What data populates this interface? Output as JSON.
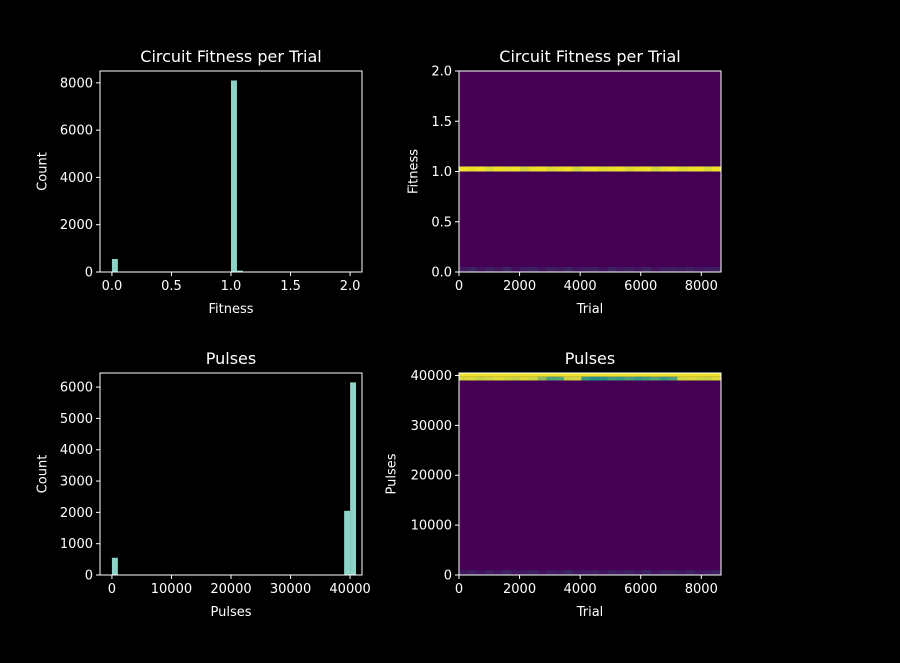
{
  "chart_data": [
    {
      "type": "bar",
      "title": "Circuit Fitness per Trial",
      "xlabel": "Fitness",
      "ylabel": "Count",
      "xlim": [
        -0.1,
        2.1
      ],
      "ylim": [
        0,
        8500
      ],
      "xticks": [
        {
          "value": 0.0,
          "label": "0.0"
        },
        {
          "value": 0.5,
          "label": "0.5"
        },
        {
          "value": 1.0,
          "label": "1.0"
        },
        {
          "value": 1.5,
          "label": "1.5"
        },
        {
          "value": 2.0,
          "label": "2.0"
        }
      ],
      "yticks": [
        {
          "value": 0,
          "label": "0"
        },
        {
          "value": 2000,
          "label": "2000"
        },
        {
          "value": 4000,
          "label": "4000"
        },
        {
          "value": 6000,
          "label": "6000"
        },
        {
          "value": 8000,
          "label": "8000"
        }
      ],
      "bins": [
        {
          "x0": 0.0,
          "x1": 0.05,
          "count": 550
        },
        {
          "x0": 1.0,
          "x1": 1.05,
          "count": 8100
        },
        {
          "x0": 1.05,
          "x1": 1.1,
          "count": 60
        }
      ],
      "bar_color": "#8dd3c7"
    },
    {
      "type": "heatmap",
      "title": "Circuit Fitness per Trial",
      "xlabel": "Trial",
      "ylabel": "Fitness",
      "xlim": [
        0,
        8650
      ],
      "ylim": [
        0,
        2.0
      ],
      "xticks": [
        {
          "value": 0,
          "label": "0"
        },
        {
          "value": 2000,
          "label": "2000"
        },
        {
          "value": 4000,
          "label": "4000"
        },
        {
          "value": 6000,
          "label": "6000"
        },
        {
          "value": 8000,
          "label": "8000"
        }
      ],
      "yticks": [
        {
          "value": 0.0,
          "label": "0.0"
        },
        {
          "value": 0.5,
          "label": "0.5"
        },
        {
          "value": 1.0,
          "label": "1.0"
        },
        {
          "value": 1.5,
          "label": "1.5"
        },
        {
          "value": 2.0,
          "label": "2.0"
        }
      ],
      "n_columns": 30,
      "bands": [
        {
          "y0": 1.0,
          "y1": 1.05,
          "levels": [
            0.97,
            0.95,
            0.97,
            0.92,
            0.97,
            0.95,
            0.97,
            0.9,
            0.95,
            0.97,
            0.92,
            0.95,
            0.97,
            0.9,
            0.95,
            0.97,
            0.93,
            0.95,
            0.97,
            0.92,
            0.95,
            0.97,
            0.9,
            0.95,
            0.97,
            0.93,
            0.95,
            0.97,
            0.92,
            0.97
          ]
        },
        {
          "y0": 0.0,
          "y1": 0.05,
          "levels": [
            0.08,
            0.12,
            0.06,
            0.1,
            0.07,
            0.12,
            0.05,
            0.09,
            0.11,
            0.06,
            0.1,
            0.08,
            0.12,
            0.07,
            0.09,
            0.1,
            0.06,
            0.11,
            0.08,
            0.1,
            0.07,
            0.12,
            0.06,
            0.09,
            0.1,
            0.08,
            0.11,
            0.07,
            0.09,
            0.1
          ]
        }
      ],
      "background_level": 0.0,
      "colormap": [
        "#440154",
        "#21918c",
        "#fde725"
      ]
    },
    {
      "type": "bar",
      "title": "Pulses",
      "xlabel": "Pulses",
      "ylabel": "Count",
      "xlim": [
        -2000,
        42000
      ],
      "ylim": [
        0,
        6450
      ],
      "xticks": [
        {
          "value": 0,
          "label": "0"
        },
        {
          "value": 10000,
          "label": "10000"
        },
        {
          "value": 20000,
          "label": "20000"
        },
        {
          "value": 30000,
          "label": "30000"
        },
        {
          "value": 40000,
          "label": "40000"
        }
      ],
      "yticks": [
        {
          "value": 0,
          "label": "0"
        },
        {
          "value": 1000,
          "label": "1000"
        },
        {
          "value": 2000,
          "label": "2000"
        },
        {
          "value": 3000,
          "label": "3000"
        },
        {
          "value": 4000,
          "label": "4000"
        },
        {
          "value": 5000,
          "label": "5000"
        },
        {
          "value": 6000,
          "label": "6000"
        }
      ],
      "bins": [
        {
          "x0": 0,
          "x1": 1000,
          "count": 550
        },
        {
          "x0": 39000,
          "x1": 40000,
          "count": 2050
        },
        {
          "x0": 40000,
          "x1": 41000,
          "count": 6150
        }
      ],
      "bar_color": "#8dd3c7"
    },
    {
      "type": "heatmap",
      "title": "Pulses",
      "xlabel": "Trial",
      "ylabel": "Pulses",
      "xlim": [
        0,
        8650
      ],
      "ylim": [
        0,
        40500
      ],
      "xticks": [
        {
          "value": 0,
          "label": "0"
        },
        {
          "value": 2000,
          "label": "2000"
        },
        {
          "value": 4000,
          "label": "4000"
        },
        {
          "value": 6000,
          "label": "6000"
        },
        {
          "value": 8000,
          "label": "8000"
        }
      ],
      "yticks": [
        {
          "value": 0,
          "label": "0"
        },
        {
          "value": 10000,
          "label": "10000"
        },
        {
          "value": 20000,
          "label": "20000"
        },
        {
          "value": 30000,
          "label": "30000"
        },
        {
          "value": 40000,
          "label": "40000"
        }
      ],
      "n_columns": 30,
      "bands": [
        {
          "y0": 39750,
          "y1": 40500,
          "levels": [
            0.97,
            0.97,
            0.97,
            0.97,
            0.97,
            0.97,
            0.97,
            0.97,
            0.97,
            0.97,
            0.97,
            0.97,
            0.97,
            0.97,
            0.97,
            0.97,
            0.97,
            0.97,
            0.97,
            0.97,
            0.97,
            0.97,
            0.97,
            0.97,
            0.97,
            0.97,
            0.97,
            0.97,
            0.97,
            0.97
          ]
        },
        {
          "y0": 39000,
          "y1": 39750,
          "levels": [
            0.9,
            0.92,
            0.88,
            0.9,
            0.93,
            0.9,
            0.87,
            0.92,
            0.9,
            0.75,
            0.6,
            0.62,
            0.88,
            0.9,
            0.55,
            0.5,
            0.52,
            0.58,
            0.56,
            0.6,
            0.55,
            0.58,
            0.62,
            0.56,
            0.6,
            0.9,
            0.92,
            0.9,
            0.88,
            0.92
          ]
        },
        {
          "y0": 0,
          "y1": 1000,
          "levels": [
            0.08,
            0.1,
            0.06,
            0.1,
            0.07,
            0.12,
            0.06,
            0.09,
            0.11,
            0.06,
            0.1,
            0.08,
            0.12,
            0.07,
            0.09,
            0.1,
            0.06,
            0.11,
            0.08,
            0.1,
            0.07,
            0.12,
            0.06,
            0.09,
            0.1,
            0.08,
            0.11,
            0.07,
            0.09,
            0.1
          ]
        }
      ],
      "background_level": 0.0,
      "colormap": [
        "#440154",
        "#21918c",
        "#fde725"
      ]
    }
  ]
}
